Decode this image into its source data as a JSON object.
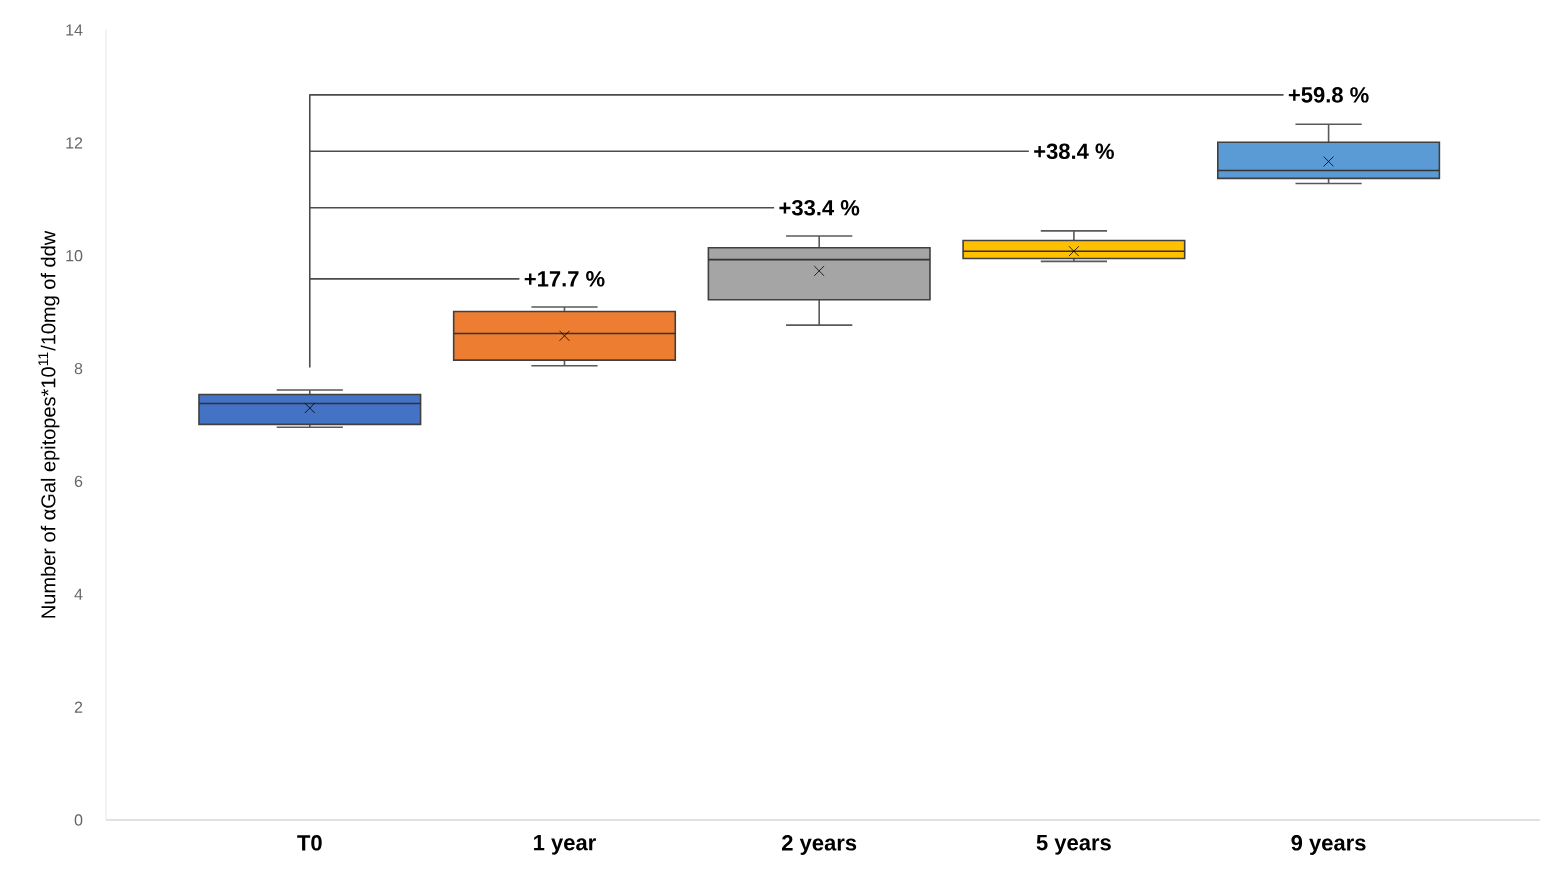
{
  "chart_data": {
    "type": "box",
    "ylabel": "Number of αGal epitopes*10$^{11}$/10mg of ddw",
    "categories": [
      "T0",
      "1 year",
      "2 years",
      "5 years",
      "9 years"
    ],
    "colors": [
      "#4472c4",
      "#ed7d31",
      "#a5a5a5",
      "#ffc000",
      "#5b9bd5"
    ],
    "boxes": [
      {
        "low": 6.96,
        "q1": 7.01,
        "median": 7.38,
        "q3": 7.54,
        "high": 7.62,
        "mean": 7.3
      },
      {
        "low": 8.05,
        "q1": 8.15,
        "median": 8.62,
        "q3": 9.01,
        "high": 9.09,
        "mean": 8.58
      },
      {
        "low": 8.77,
        "q1": 9.22,
        "median": 9.93,
        "q3": 10.14,
        "high": 10.35,
        "mean": 9.73
      },
      {
        "low": 9.9,
        "q1": 9.95,
        "median": 10.08,
        "q3": 10.27,
        "high": 10.44,
        "mean": 10.08
      },
      {
        "low": 11.28,
        "q1": 11.37,
        "median": 11.51,
        "q3": 12.01,
        "high": 12.33,
        "mean": 11.67
      }
    ],
    "ylim": [
      0,
      14
    ],
    "yticks": [
      0,
      2,
      4,
      6,
      8,
      10,
      12,
      14
    ],
    "annotations": [
      "+17.7 %",
      "+33.4 %",
      "+38.4 %",
      "+59.8 %"
    ]
  }
}
